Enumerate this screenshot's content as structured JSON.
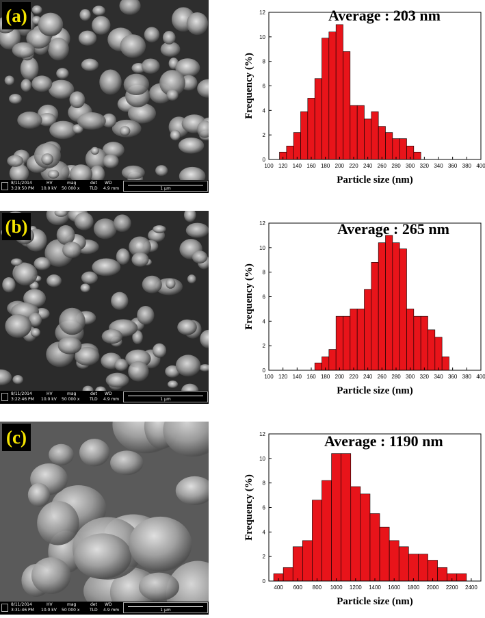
{
  "panels": [
    {
      "label": "(a)",
      "average_text": "Average : 203 nm",
      "sem": {
        "date": "8/11/2014",
        "time": "3:20:50 PM",
        "hv": "10.0 kV",
        "mag": "50 000 x",
        "det": "TLD",
        "wd": "4.9 mm",
        "scale": "1 µm"
      }
    },
    {
      "label": "(b)",
      "average_text": "Average : 265 nm",
      "sem": {
        "date": "8/11/2014",
        "time": "3:22:46 PM",
        "hv": "10.0 kV",
        "mag": "50 000 x",
        "det": "TLD",
        "wd": "4.9 mm",
        "scale": "1 µm"
      }
    },
    {
      "label": "(c)",
      "average_text": "Average : 1190 nm",
      "sem": {
        "date": "8/11/2014",
        "time": "3:31:46 PM",
        "hv": "10.0 kV",
        "mag": "50 000 x",
        "det": "TLD",
        "wd": "4.9 mm",
        "scale": "1 µm"
      }
    }
  ],
  "sem_header_labels": {
    "hv": "HV",
    "mag": "mag",
    "det": "det",
    "wd": "WD"
  },
  "colors": {
    "bar_fill": "#e8141a",
    "bar_stroke": "#000000",
    "label_text": "#f5e400"
  },
  "chart_data": [
    {
      "type": "bar",
      "xlabel": "Particle size (nm)",
      "ylabel": "Frequency (%)",
      "xlim": [
        100,
        400
      ],
      "ylim": [
        0,
        12
      ],
      "xticks": [
        100,
        120,
        140,
        160,
        180,
        200,
        220,
        240,
        260,
        280,
        300,
        320,
        340,
        360,
        380,
        400
      ],
      "yticks": [
        0,
        2,
        4,
        6,
        8,
        10,
        12
      ],
      "bin_width": 10,
      "x": [
        120,
        130,
        140,
        150,
        160,
        170,
        180,
        190,
        200,
        210,
        220,
        230,
        240,
        250,
        260,
        270,
        280,
        290,
        300,
        310
      ],
      "values": [
        0.6,
        1.1,
        2.2,
        3.9,
        5.0,
        6.6,
        9.9,
        10.4,
        11.0,
        8.8,
        4.4,
        4.4,
        3.3,
        3.9,
        2.7,
        2.2,
        1.7,
        1.7,
        1.1,
        0.6
      ]
    },
    {
      "type": "bar",
      "xlabel": "Particle size (nm)",
      "ylabel": "Frequency (%)",
      "xlim": [
        100,
        400
      ],
      "ylim": [
        0,
        12
      ],
      "xticks": [
        100,
        120,
        140,
        160,
        180,
        200,
        220,
        240,
        260,
        280,
        300,
        320,
        340,
        360,
        380,
        400
      ],
      "yticks": [
        0,
        2,
        4,
        6,
        8,
        10,
        12
      ],
      "bin_width": 10,
      "x": [
        170,
        180,
        190,
        200,
        210,
        220,
        230,
        240,
        250,
        260,
        270,
        280,
        290,
        300,
        310,
        320,
        330,
        340,
        350
      ],
      "values": [
        0.6,
        1.1,
        1.7,
        4.4,
        4.4,
        5.0,
        5.0,
        6.6,
        8.8,
        10.4,
        11.0,
        10.4,
        9.9,
        5.0,
        4.4,
        4.4,
        3.3,
        2.7,
        1.1
      ]
    },
    {
      "type": "bar",
      "xlabel": "Particle size (nm)",
      "ylabel": "Frequency (%)",
      "xlim": [
        300,
        2500
      ],
      "ylim": [
        0,
        12
      ],
      "xticks": [
        400,
        600,
        800,
        1000,
        1200,
        1400,
        1600,
        1800,
        2000,
        2200,
        2400
      ],
      "yticks": [
        0,
        2,
        4,
        6,
        8,
        10,
        12
      ],
      "bin_width": 100,
      "x": [
        400,
        500,
        600,
        700,
        800,
        900,
        1000,
        1100,
        1200,
        1300,
        1400,
        1500,
        1600,
        1700,
        1800,
        1900,
        2000,
        2100,
        2200,
        2300
      ],
      "values": [
        0.6,
        1.1,
        2.8,
        3.3,
        6.6,
        8.2,
        10.4,
        10.4,
        7.7,
        7.1,
        5.5,
        4.4,
        3.3,
        2.8,
        2.2,
        2.2,
        1.7,
        1.1,
        0.6,
        0.6
      ]
    }
  ]
}
